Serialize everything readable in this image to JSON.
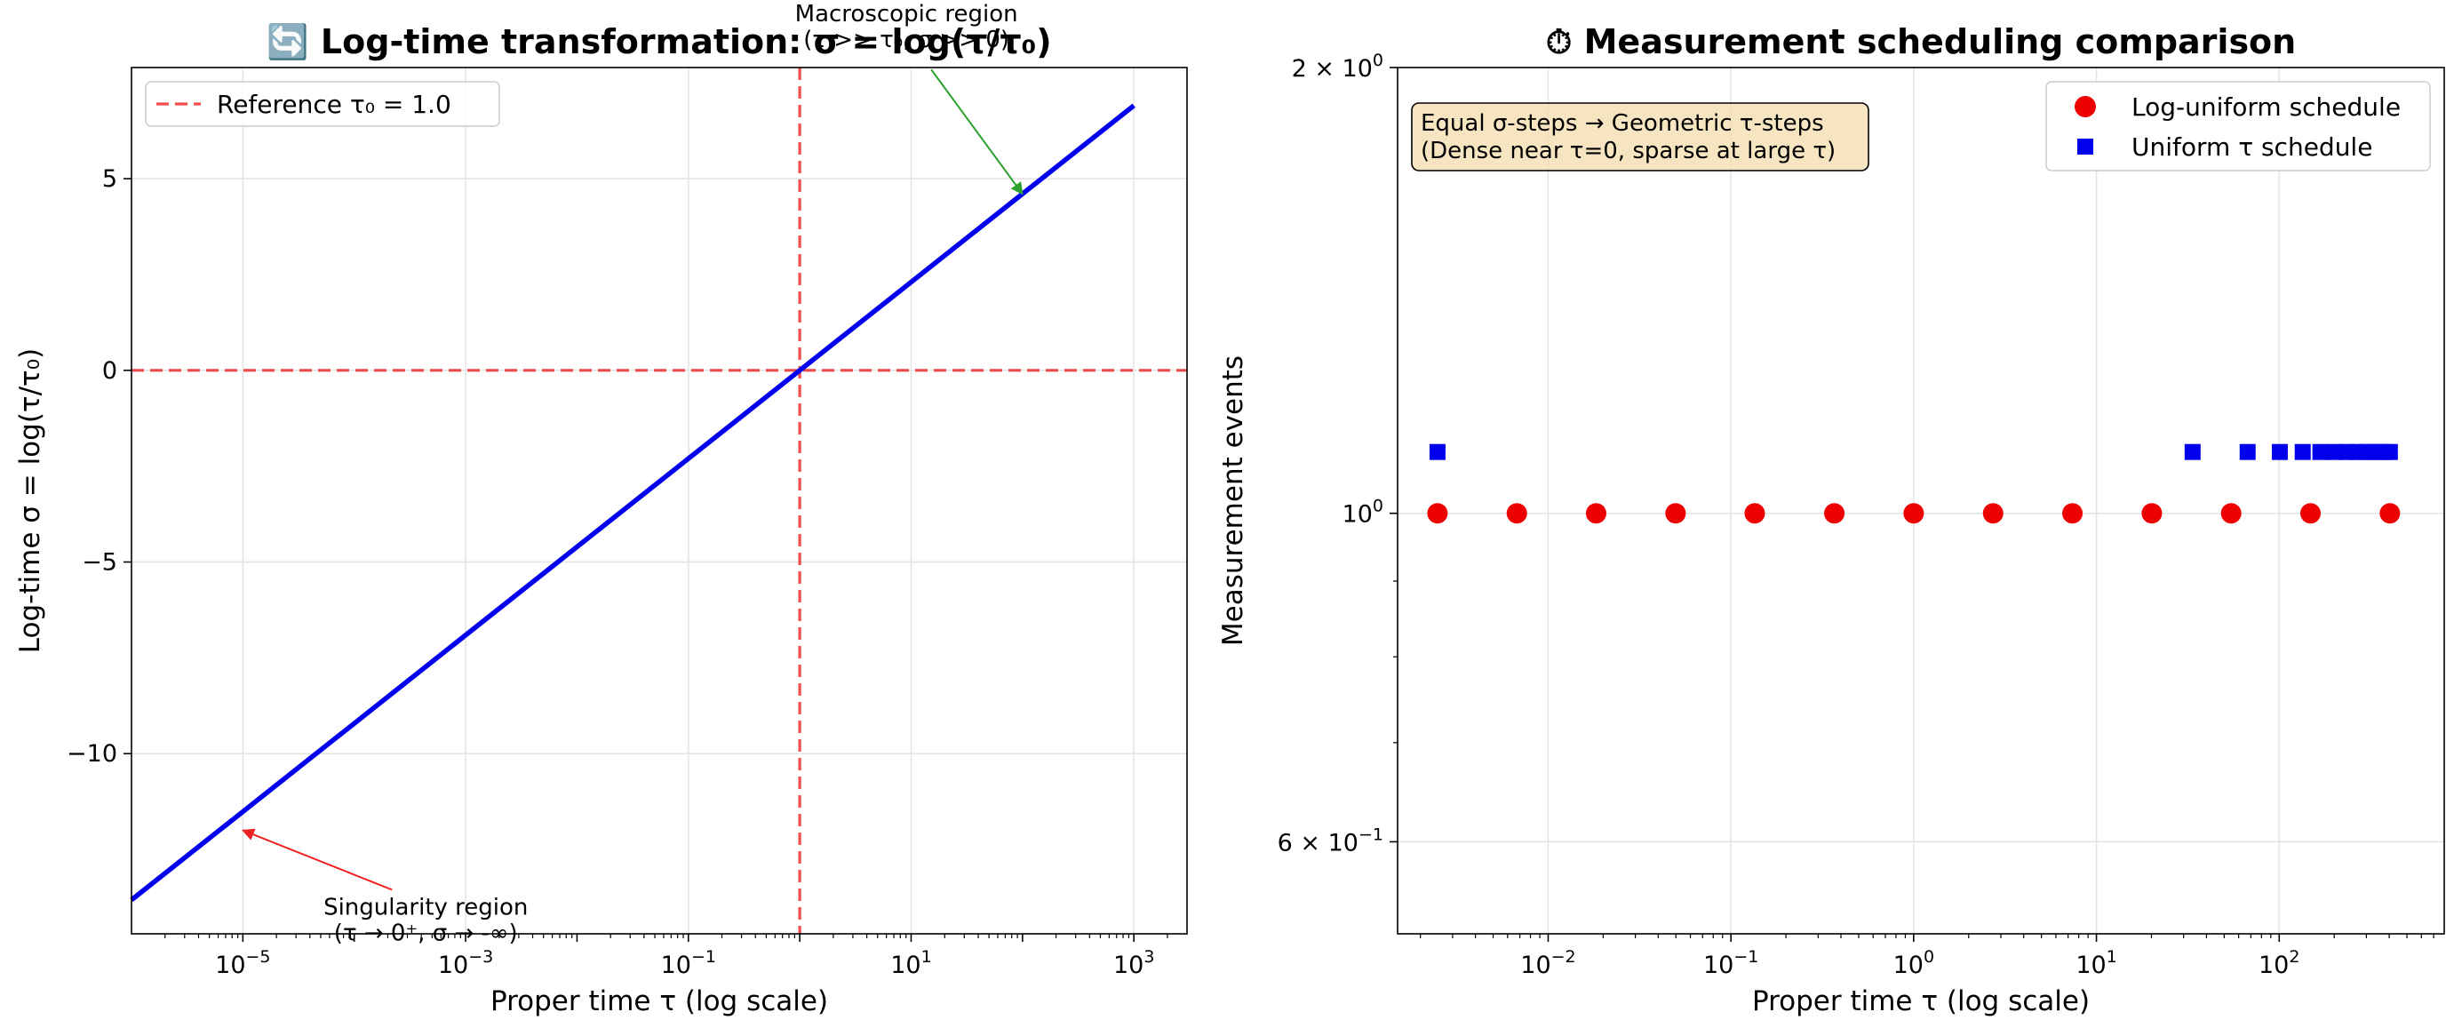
{
  "chart_data": [
    {
      "type": "line",
      "title": "🔄 Log-time transformation: σ = log(τ/τ₀)",
      "xlabel": "Proper time τ (log scale)",
      "ylabel": "Log-time σ = log(τ/τ₀)",
      "xscale": "log",
      "yscale": "linear",
      "xlim": [
        1e-06,
        3000
      ],
      "ylim": [
        -14.7,
        7.9
      ],
      "xticks": [
        {
          "value": 1e-05,
          "base": "10",
          "exp": "−5"
        },
        {
          "value": 0.001,
          "base": "10",
          "exp": "−3"
        },
        {
          "value": 0.1,
          "base": "10",
          "exp": "−1"
        },
        {
          "value": 10,
          "base": "10",
          "exp": "1"
        },
        {
          "value": 1000,
          "base": "10",
          "exp": "3"
        }
      ],
      "yticks": [
        {
          "value": 5,
          "label": "5"
        },
        {
          "value": 0,
          "label": "0"
        },
        {
          "value": -5,
          "label": "−5"
        },
        {
          "value": -10,
          "label": "−10"
        }
      ],
      "grid": true,
      "series": [
        {
          "x": [
            1e-06,
            1000
          ],
          "y": [
            -13.8155,
            6.9078
          ],
          "color": "#0000ee"
        }
      ],
      "reference_lines": [
        {
          "orientation": "vertical",
          "value": 1.0,
          "color": "#ee2222"
        },
        {
          "orientation": "horizontal",
          "value": 0,
          "color": "#ee2222"
        }
      ],
      "legend": {
        "position": "upper-left",
        "entries": [
          {
            "label": "Reference τ₀ = 1.0",
            "color": "#ee2222",
            "style": "dashed"
          }
        ]
      },
      "annotations": [
        {
          "lines": [
            "Macroscopic region",
            "(τ >> τ₀, σ >> 0)"
          ],
          "text_x": 1.0,
          "text_y": 9.1,
          "arrow_x": 100,
          "arrow_y": 4.6,
          "color": "#2ca02c"
        },
        {
          "lines": [
            "Singularity region",
            "(τ → 0⁺, σ → -∞)"
          ],
          "text_x": 0.0011,
          "text_y": -14.2,
          "arrow_x": 1e-05,
          "arrow_y": -12.0,
          "color": "#ee2222"
        }
      ]
    },
    {
      "type": "scatter",
      "title": "⏱ Measurement scheduling comparison",
      "xlabel": "Proper time τ (log scale)",
      "ylabel": "Measurement events",
      "xscale": "log",
      "yscale": "log",
      "xlim": [
        0.0015,
        800
      ],
      "ylim": [
        0.52,
        2.0
      ],
      "xticks": [
        {
          "value": 0.01,
          "base": "10",
          "exp": "−2"
        },
        {
          "value": 0.1,
          "base": "10",
          "exp": "−1"
        },
        {
          "value": 1,
          "base": "10",
          "exp": "0"
        },
        {
          "value": 10,
          "base": "10",
          "exp": "1"
        },
        {
          "value": 100,
          "base": "10",
          "exp": "2"
        }
      ],
      "yticks": [
        {
          "value": 2.0,
          "pre": "2 × 10",
          "exp": "0"
        },
        {
          "value": 1.0,
          "pre": "10",
          "exp": "0"
        },
        {
          "value": 0.6,
          "pre": "6 × 10",
          "exp": "−1"
        }
      ],
      "grid": true,
      "series": [
        {
          "name": "Log-uniform schedule",
          "color": "#ee0000",
          "marker": "circle",
          "x": [
            0.00248,
            0.00674,
            0.0183,
            0.0498,
            0.135,
            0.368,
            1.0,
            2.72,
            7.39,
            20.1,
            54.6,
            148.4,
            403.4
          ],
          "y": [
            1,
            1,
            1,
            1,
            1,
            1,
            1,
            1,
            1,
            1,
            1,
            1,
            1
          ]
        },
        {
          "name": "Uniform τ schedule",
          "color": "#0000ee",
          "marker": "square",
          "x": [
            0.00248,
            33.6,
            67.2,
            100.8,
            134.5,
            168.1,
            201.7,
            235.3,
            268.9,
            302.5,
            336.2,
            369.8,
            403.4
          ],
          "y": [
            1.1,
            1.1,
            1.1,
            1.1,
            1.1,
            1.1,
            1.1,
            1.1,
            1.1,
            1.1,
            1.1,
            1.1,
            1.1
          ]
        }
      ],
      "legend": {
        "position": "upper-right"
      },
      "info_box": {
        "lines": [
          "Equal σ-steps → Geometric τ-steps",
          "(Dense near τ=0, sparse at large τ)"
        ],
        "background": "#f5deb3"
      }
    }
  ]
}
